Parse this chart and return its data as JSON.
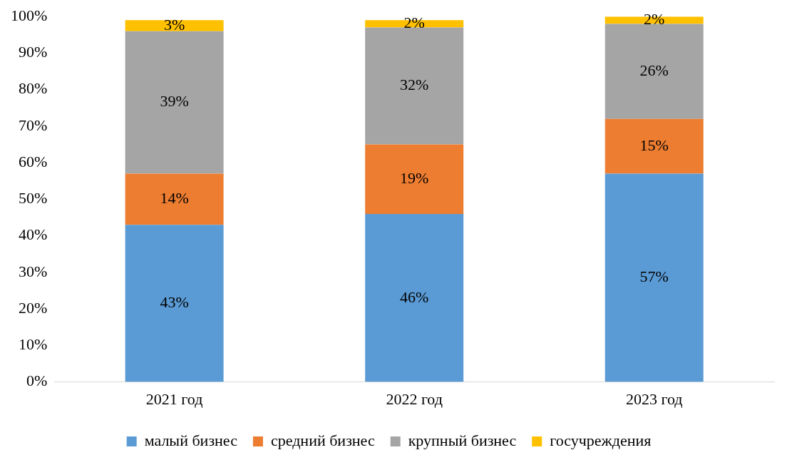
{
  "chart_data": {
    "type": "bar",
    "stacked": true,
    "categories": [
      "2021 год",
      "2022 год",
      "2023 год"
    ],
    "series": [
      {
        "name": "малый бизнес",
        "color": "#5b9bd5",
        "values": [
          43,
          46,
          57
        ],
        "value_labels": [
          "43%",
          "46%",
          "57%"
        ]
      },
      {
        "name": "средний бизнес",
        "color": "#ed7d31",
        "values": [
          14,
          19,
          15
        ],
        "value_labels": [
          "14%",
          "19%",
          "15%"
        ]
      },
      {
        "name": "крупный бизнес",
        "color": "#a5a5a5",
        "values": [
          39,
          32,
          26
        ],
        "value_labels": [
          "39%",
          "32%",
          "26%"
        ]
      },
      {
        "name": "госучреждения",
        "color": "#ffc000",
        "values": [
          3,
          2,
          2
        ],
        "value_labels": [
          "3%",
          "2%",
          "2%"
        ]
      }
    ],
    "ylim": [
      0,
      100
    ],
    "yticks": [
      {
        "value": 0,
        "label": "0%"
      },
      {
        "value": 10,
        "label": "10%"
      },
      {
        "value": 20,
        "label": "20%"
      },
      {
        "value": 30,
        "label": "30%"
      },
      {
        "value": 40,
        "label": "40%"
      },
      {
        "value": 50,
        "label": "50%"
      },
      {
        "value": 60,
        "label": "60%"
      },
      {
        "value": 70,
        "label": "70%"
      },
      {
        "value": 80,
        "label": "80%"
      },
      {
        "value": 90,
        "label": "90%"
      },
      {
        "value": 100,
        "label": "100%"
      }
    ],
    "grid": false,
    "legend": "bottom"
  }
}
